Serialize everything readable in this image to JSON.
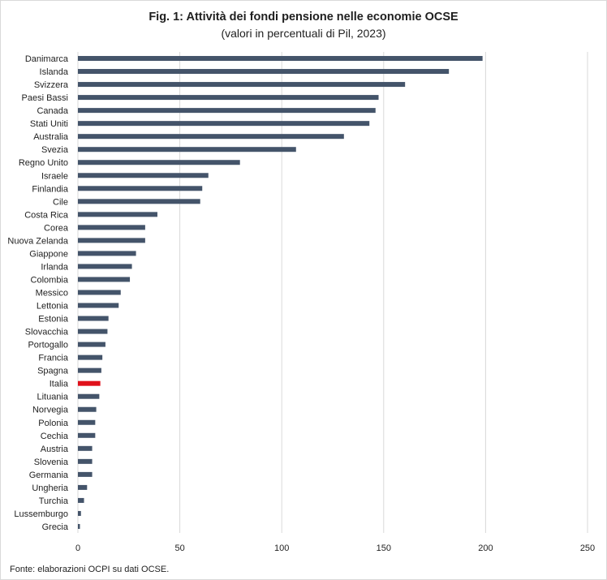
{
  "title": "Fig. 1: Attività dei fondi pensione nelle economie OCSE",
  "subtitle": "(valori in percentuali di Pil, 2023)",
  "source": "Fonte: elaborazioni OCPI su dati OCSE.",
  "colors": {
    "bar": "#44546a",
    "highlight": "#e0111b",
    "grid": "#d9d9d9"
  },
  "chart_data": {
    "type": "bar",
    "orientation": "horizontal",
    "categories": [
      "Danimarca",
      "Islanda",
      "Svizzera",
      "Paesi Bassi",
      "Canada",
      "Stati Uniti",
      "Australia",
      "Svezia",
      "Regno Unito",
      "Israele",
      "Finlandia",
      "Cile",
      "Costa Rica",
      "Corea",
      "Nuova Zelanda",
      "Giappone",
      "Irlanda",
      "Colombia",
      "Messico",
      "Lettonia",
      "Estonia",
      "Slovacchia",
      "Portogallo",
      "Francia",
      "Spagna",
      "Italia",
      "Lituania",
      "Norvegia",
      "Polonia",
      "Cechia",
      "Austria",
      "Slovenia",
      "Germania",
      "Ungheria",
      "Turchia",
      "Lussemburgo",
      "Grecia"
    ],
    "values": [
      198.5,
      182,
      160.5,
      147.5,
      146,
      143,
      130.5,
      107,
      79.5,
      64,
      61,
      60,
      39,
      33,
      33,
      28.5,
      26.5,
      25.5,
      21,
      20,
      15,
      14.5,
      13.5,
      12,
      11.5,
      11,
      10.5,
      9,
      8.5,
      8.5,
      7,
      7,
      7,
      4.5,
      3,
      1.5,
      1
    ],
    "highlight": "Italia",
    "xlim": [
      0,
      250
    ],
    "xticks": [
      0,
      50,
      100,
      150,
      200,
      250
    ],
    "grid": true,
    "legend": "none"
  }
}
